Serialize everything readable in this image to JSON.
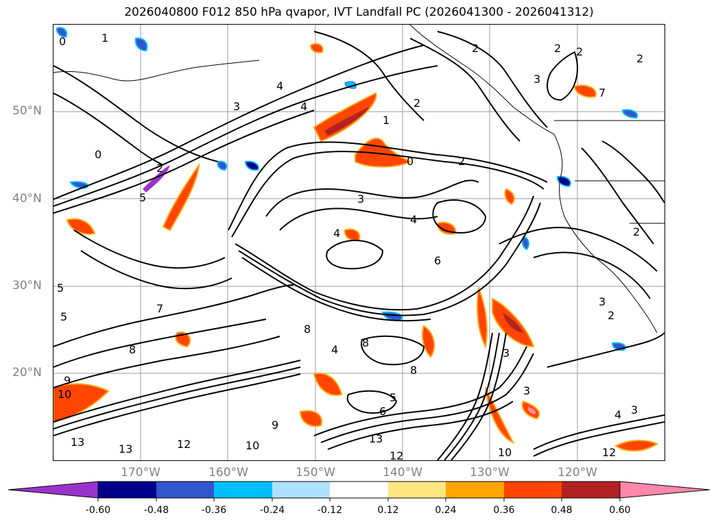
{
  "title": "2026040800 F012 850 hPa qvapor, IVT Landfall PC (2026041300 - 2026041312)",
  "lat_labels": [
    "50°N",
    "40°N",
    "30°N",
    "20°N"
  ],
  "lon_labels": [
    "170°W",
    "160°W",
    "150°W",
    "140°W",
    "130°W",
    "120°W"
  ],
  "colorbar": {
    "extend": "both",
    "ticks": [
      "-0.60",
      "-0.48",
      "-0.36",
      "-0.24",
      "-0.12",
      "0.12",
      "0.24",
      "0.36",
      "0.48",
      "0.60"
    ],
    "colors": [
      "#9933cc",
      "#00008b",
      "#3355cc",
      "#00bfff",
      "#b0e0ff",
      "#ffffff",
      "#ffe680",
      "#ffa500",
      "#ff4500",
      "#b22222",
      "#ff88aa"
    ]
  },
  "contour_labels": [
    "0",
    "1",
    "2",
    "3",
    "4",
    "5",
    "6",
    "7",
    "8",
    "9",
    "10",
    "12",
    "13"
  ]
}
